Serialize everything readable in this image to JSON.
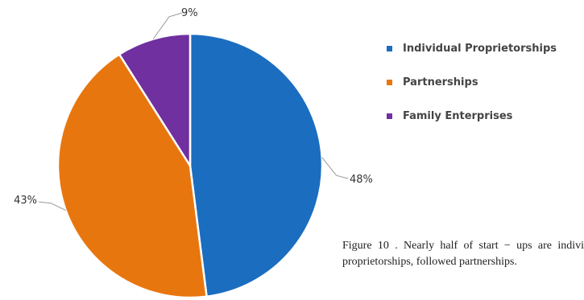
{
  "chart_data": {
    "type": "pie",
    "title": "",
    "categories": [
      "Individual Proprietorships",
      "Partnerships",
      "Family Enterprises"
    ],
    "values": [
      48,
      43,
      9
    ],
    "labels": [
      "48%",
      "43%",
      "9%"
    ],
    "colors": [
      "#1b6dbf",
      "#e8760f",
      "#7030a0"
    ],
    "legend_position": "right"
  },
  "caption": {
    "text": "Figure 10 . Nearly half of start − ups are indivi proprietorships, followed partnerships."
  }
}
